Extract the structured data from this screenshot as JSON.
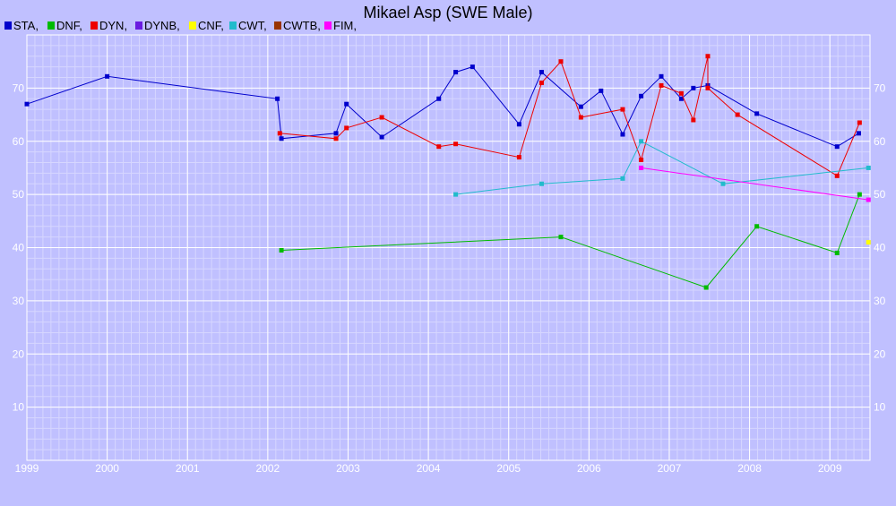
{
  "chart_data": {
    "type": "line",
    "title": "Mikael Asp (SWE Male)",
    "xlabel": "",
    "ylabel": "",
    "xlim": [
      1999.0,
      2009.5
    ],
    "ylim": [
      0,
      80
    ],
    "x_ticks": [
      "1999",
      "2000",
      "2001",
      "2002",
      "2003",
      "2004",
      "2005",
      "2006",
      "2007",
      "2008",
      "2009"
    ],
    "y_ticks": [
      "10",
      "20",
      "30",
      "40",
      "50",
      "60",
      "70"
    ],
    "grid": true,
    "legend_position": "top-left",
    "legend": [
      {
        "label": "STA,",
        "color": "#0000cc"
      },
      {
        "label": "DNF,",
        "color": "#00bb00"
      },
      {
        "label": "DYN,",
        "color": "#ee0000"
      },
      {
        "label": "DYNB,",
        "color": "#6a1be0"
      },
      {
        "label": "CNF,",
        "color": "#ffff00"
      },
      {
        "label": "CWT,",
        "color": "#22bbcc"
      },
      {
        "label": "CWTB,",
        "color": "#993300"
      },
      {
        "label": "FIM,",
        "color": "#ff00ff"
      }
    ],
    "series": [
      {
        "name": "STA",
        "color": "#0000cc",
        "points": [
          [
            1999.0,
            67
          ],
          [
            2000.0,
            72.2
          ],
          [
            2002.12,
            68
          ],
          [
            2002.17,
            60.5
          ],
          [
            2002.85,
            61.5
          ],
          [
            2002.98,
            67
          ],
          [
            2003.42,
            60.8
          ],
          [
            2004.13,
            68
          ],
          [
            2004.34,
            73
          ],
          [
            2004.55,
            74
          ],
          [
            2005.13,
            63.2
          ],
          [
            2005.41,
            73
          ],
          [
            2005.9,
            66.5
          ],
          [
            2006.15,
            69.5
          ],
          [
            2006.42,
            61.3
          ],
          [
            2006.65,
            68.5
          ],
          [
            2006.9,
            72.2
          ],
          [
            2007.15,
            68
          ],
          [
            2007.3,
            70
          ],
          [
            2007.48,
            70.5
          ],
          [
            2008.09,
            65.2
          ],
          [
            2009.09,
            59
          ],
          [
            2009.36,
            61.5
          ]
        ]
      },
      {
        "name": "DNF",
        "color": "#00bb00",
        "points": [
          [
            2002.17,
            39.5
          ],
          [
            2005.65,
            42
          ],
          [
            2007.46,
            32.5
          ],
          [
            2008.09,
            44
          ],
          [
            2009.09,
            39
          ],
          [
            2009.37,
            50
          ]
        ]
      },
      {
        "name": "DYN",
        "color": "#ee0000",
        "points": [
          [
            2002.15,
            61.5
          ],
          [
            2002.85,
            60.5
          ],
          [
            2002.98,
            62.5
          ],
          [
            2003.42,
            64.5
          ],
          [
            2004.13,
            59
          ],
          [
            2004.34,
            59.5
          ],
          [
            2005.13,
            57
          ],
          [
            2005.41,
            71
          ],
          [
            2005.65,
            75
          ],
          [
            2005.9,
            64.5
          ],
          [
            2006.42,
            66
          ],
          [
            2006.65,
            56.5
          ],
          [
            2006.9,
            70.5
          ],
          [
            2007.15,
            69
          ],
          [
            2007.3,
            64
          ],
          [
            2007.48,
            76
          ],
          [
            2007.48,
            70
          ],
          [
            2007.85,
            65
          ],
          [
            2009.09,
            53.5
          ],
          [
            2009.37,
            63.5
          ]
        ]
      },
      {
        "name": "CNF",
        "color": "#ffff00",
        "points": [
          [
            2009.48,
            41
          ]
        ]
      },
      {
        "name": "CWT",
        "color": "#22bbcc",
        "points": [
          [
            2004.34,
            50
          ],
          [
            2005.41,
            52
          ],
          [
            2006.42,
            53
          ],
          [
            2006.65,
            60
          ],
          [
            2007.67,
            52
          ],
          [
            2009.48,
            55
          ]
        ]
      },
      {
        "name": "FIM",
        "color": "#ff00ff",
        "points": [
          [
            2006.65,
            55
          ],
          [
            2009.48,
            49
          ]
        ]
      }
    ]
  }
}
